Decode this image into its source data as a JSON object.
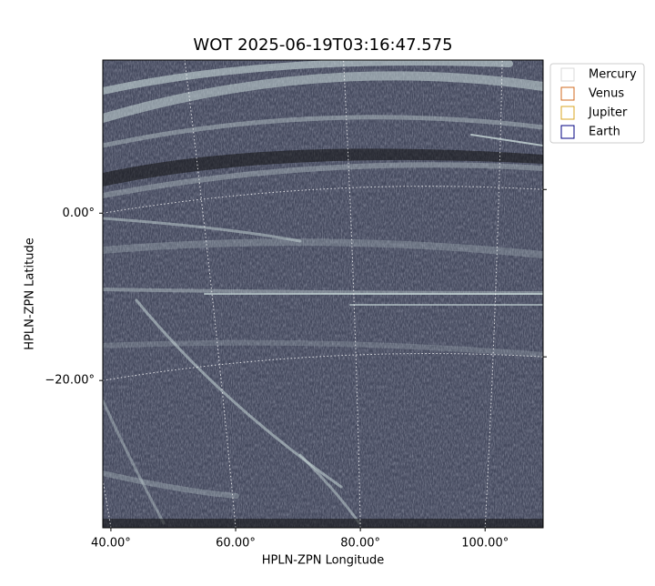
{
  "chart_data": {
    "type": "image",
    "title": "WOT 2025-06-19T03:16:47.575",
    "xlabel": "HPLN-ZPN Longitude",
    "ylabel": "HPLN-ZPN Latitude",
    "xlim": [
      38.7,
      109.3
    ],
    "ylim": [
      -37.6,
      18.3
    ],
    "xticks": [
      {
        "value": 40,
        "label": "40.00°"
      },
      {
        "value": 60,
        "label": "60.00°"
      },
      {
        "value": 80,
        "label": "80.00°"
      },
      {
        "value": 100,
        "label": "100.00°"
      }
    ],
    "yticks": [
      {
        "value": 0,
        "label": "0.00°"
      },
      {
        "value": -20,
        "label": "−20.00°"
      }
    ],
    "grid": true,
    "series": [
      {
        "name": "Mercury",
        "color": "#d9d9d9"
      },
      {
        "name": "Venus",
        "color": "#d2691e"
      },
      {
        "name": "Jupiter",
        "color": "#daa520"
      },
      {
        "name": "Earth",
        "color": "#000080"
      }
    ]
  }
}
